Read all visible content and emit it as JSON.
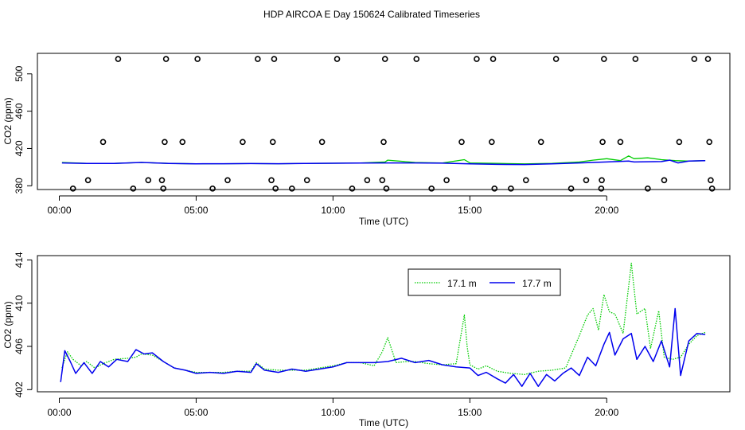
{
  "title": "HDP AIRCOA E  Day 150624  Calibrated Timeseries",
  "colors": {
    "series_17_1m": "#00cc00",
    "series_17_7m": "#0000ee",
    "axis": "#000000"
  },
  "chart_data": [
    {
      "type": "scatter+line",
      "xlabel": "Time (UTC)",
      "ylabel": "CO2 (ppm)",
      "xlim": [
        -0.8,
        24.5
      ],
      "ylim": [
        376,
        522
      ],
      "x_ticks": [
        0,
        5,
        10,
        15,
        20
      ],
      "x_tick_labels": [
        "00:00",
        "05:00",
        "10:00",
        "15:00",
        "20:00"
      ],
      "y_ticks": [
        380,
        420,
        460,
        500
      ],
      "y_tick_labels": [
        "380",
        "420",
        "460",
        "500"
      ],
      "markers": {
        "style": "open-circle",
        "x": [
          0.5,
          1.05,
          1.6,
          2.15,
          2.7,
          3.25,
          3.75,
          3.8,
          3.85,
          3.9,
          4.5,
          5.05,
          5.6,
          6.15,
          6.7,
          7.25,
          7.75,
          7.8,
          7.85,
          7.9,
          8.5,
          9.05,
          9.6,
          10.15,
          10.7,
          11.25,
          11.8,
          11.85,
          11.9,
          11.95,
          13.05,
          13.6,
          14.15,
          14.7,
          15.25,
          15.8,
          15.85,
          15.9,
          16.5,
          17.05,
          17.6,
          18.15,
          18.7,
          19.25,
          19.8,
          19.82,
          19.85,
          19.9,
          20.5,
          21.05,
          21.5,
          22.1,
          22.65,
          23.2,
          23.7,
          23.75,
          23.8,
          23.85
        ],
        "y": [
          377,
          386,
          427,
          516,
          377,
          386,
          386,
          377,
          427,
          516,
          427,
          516,
          377,
          386,
          427,
          516,
          386,
          427,
          516,
          377,
          377,
          386,
          427,
          516,
          377,
          386,
          386,
          427,
          516,
          377,
          516,
          377,
          386,
          427,
          516,
          427,
          516,
          377,
          377,
          386,
          427,
          516,
          377,
          386,
          377,
          386,
          427,
          516,
          427,
          516,
          377,
          386,
          427,
          516,
          516,
          427,
          386,
          377
        ]
      },
      "series": [
        {
          "name": "17.1 m",
          "color": "#00cc00",
          "x": [
            0.1,
            1,
            2,
            3,
            4,
            5,
            6,
            7,
            8,
            9,
            10,
            11,
            11.9,
            12,
            13,
            14,
            14.8,
            15,
            16,
            17,
            18,
            19,
            19.5,
            20,
            20.5,
            20.8,
            21,
            21.5,
            22,
            22.5,
            23,
            23.6
          ],
          "y": [
            405,
            404,
            404,
            405,
            404,
            403.6,
            403.7,
            403.8,
            403.7,
            404,
            404.2,
            404.4,
            405.5,
            407.5,
            405,
            404.4,
            408,
            404.5,
            404,
            403.5,
            404,
            405.5,
            407.5,
            409,
            407,
            412,
            409,
            410,
            408,
            407,
            406.5,
            407
          ]
        },
        {
          "name": "17.7 m",
          "color": "#0000ee",
          "x": [
            0.1,
            1,
            2,
            3,
            4,
            5,
            6,
            7,
            8,
            9,
            10,
            11,
            12,
            13,
            14,
            15,
            16,
            17,
            18,
            19,
            20,
            20.8,
            21,
            22,
            22.3,
            22.6,
            23,
            23.6
          ],
          "y": [
            404.5,
            404,
            404,
            405,
            404,
            403.6,
            403.7,
            403.8,
            403.7,
            404,
            404.2,
            404.4,
            404.5,
            404.5,
            404.3,
            403.5,
            403,
            402.8,
            403.5,
            404.5,
            405.5,
            406.5,
            405.5,
            406,
            407.5,
            404.5,
            406.5,
            407
          ]
        }
      ]
    },
    {
      "type": "line",
      "xlabel": "Time (UTC)",
      "ylabel": "CO2 (ppm)",
      "xlim": [
        -0.8,
        24.5
      ],
      "ylim": [
        401.8,
        414.4
      ],
      "x_ticks": [
        0,
        5,
        10,
        15,
        20
      ],
      "x_tick_labels": [
        "00:00",
        "05:00",
        "10:00",
        "15:00",
        "20:00"
      ],
      "y_ticks": [
        402,
        406,
        410,
        414
      ],
      "y_tick_labels": [
        "402",
        "406",
        "410",
        "414"
      ],
      "legend": {
        "placement": "top-right"
      },
      "series": [
        {
          "name": "17.1 m",
          "color": "#00cc00",
          "style": "dotted",
          "x": [
            0.1,
            0.2,
            0.3,
            0.5,
            0.8,
            1.0,
            1.3,
            1.6,
            2.0,
            2.5,
            2.8,
            3.0,
            3.4,
            3.8,
            4.2,
            4.6,
            5.0,
            5.5,
            6.0,
            6.5,
            7.0,
            7.2,
            7.5,
            8.0,
            8.5,
            9.0,
            9.5,
            10.0,
            10.5,
            11.0,
            11.5,
            11.8,
            12.0,
            12.3,
            12.7,
            13.0,
            13.5,
            14.0,
            14.5,
            14.8,
            14.9,
            15.0,
            15.3,
            15.6,
            16.0,
            16.5,
            17.0,
            17.5,
            18.0,
            18.5,
            19.0,
            19.3,
            19.5,
            19.7,
            19.9,
            20.1,
            20.3,
            20.6,
            20.9,
            21.1,
            21.4,
            21.6,
            21.9,
            22.1,
            22.4,
            22.7,
            23.0,
            23.3,
            23.6
          ],
          "y": [
            404.0,
            404.8,
            405.5,
            404.8,
            404.2,
            404.6,
            404.0,
            404.4,
            404.8,
            404.9,
            405.0,
            405.3,
            405.2,
            404.6,
            404.0,
            403.8,
            403.6,
            403.6,
            403.6,
            403.7,
            403.7,
            404.5,
            403.9,
            403.8,
            403.8,
            403.8,
            404.0,
            404.2,
            404.5,
            404.5,
            404.2,
            405.5,
            406.8,
            404.5,
            404.6,
            404.6,
            404.4,
            404.3,
            404.4,
            408.9,
            406.0,
            404.3,
            403.9,
            404.2,
            403.7,
            403.5,
            403.4,
            403.7,
            403.8,
            404.0,
            407.0,
            408.9,
            409.5,
            407.5,
            410.8,
            409.2,
            409.0,
            407.2,
            413.7,
            409.0,
            409.5,
            405.8,
            409.3,
            405.0,
            404.8,
            405.0,
            406.2,
            407.0,
            407.3
          ]
        },
        {
          "name": "17.7 m",
          "color": "#0000ee",
          "style": "solid",
          "x": [
            0.05,
            0.2,
            0.4,
            0.6,
            0.9,
            1.2,
            1.5,
            1.8,
            2.1,
            2.5,
            2.8,
            3.1,
            3.4,
            3.8,
            4.2,
            4.6,
            5.0,
            5.5,
            6.0,
            6.5,
            7.0,
            7.2,
            7.5,
            8.0,
            8.5,
            9.0,
            9.5,
            10.0,
            10.5,
            11.0,
            11.5,
            12.0,
            12.5,
            13.0,
            13.5,
            14.0,
            14.5,
            15.0,
            15.3,
            15.6,
            16.0,
            16.3,
            16.6,
            16.9,
            17.2,
            17.5,
            17.8,
            18.1,
            18.4,
            18.7,
            19.0,
            19.3,
            19.6,
            19.9,
            20.1,
            20.3,
            20.6,
            20.9,
            21.1,
            21.4,
            21.7,
            22.0,
            22.3,
            22.5,
            22.7,
            23.0,
            23.3,
            23.6
          ],
          "y": [
            402.7,
            405.6,
            404.6,
            403.5,
            404.5,
            403.5,
            404.6,
            404.1,
            404.8,
            404.6,
            405.7,
            405.3,
            405.4,
            404.6,
            404.0,
            403.8,
            403.5,
            403.6,
            403.5,
            403.7,
            403.6,
            404.4,
            403.8,
            403.6,
            403.9,
            403.7,
            403.9,
            404.1,
            404.5,
            404.5,
            404.5,
            404.6,
            404.9,
            404.5,
            404.7,
            404.3,
            404.1,
            404.0,
            403.3,
            403.6,
            403.0,
            402.6,
            403.4,
            402.3,
            403.5,
            402.3,
            403.4,
            402.8,
            403.5,
            404.0,
            403.3,
            405.0,
            404.2,
            406.2,
            407.3,
            405.2,
            406.7,
            407.2,
            404.8,
            406.0,
            404.6,
            406.5,
            404.1,
            409.5,
            403.3,
            406.5,
            407.2,
            407.1
          ]
        }
      ]
    }
  ]
}
